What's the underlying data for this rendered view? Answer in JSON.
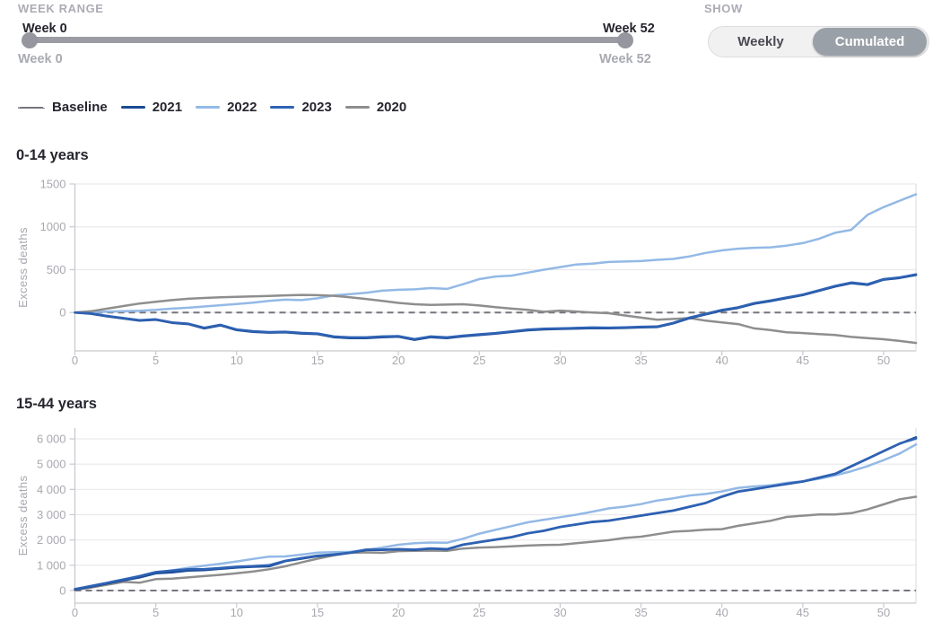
{
  "controls": {
    "week_range_label": "WEEK RANGE",
    "show_label": "SHOW",
    "slider": {
      "from_label": "Week 0",
      "to_label": "Week 52",
      "from_sublabel": "Week 0",
      "to_sublabel": "Week 52"
    },
    "toggle": {
      "options": [
        "Weekly",
        "Cumulated"
      ],
      "selected": "Cumulated"
    }
  },
  "legend": [
    {
      "label": "Baseline",
      "color": "#75757d",
      "dashed": true
    },
    {
      "label": "2021",
      "color": "#1a4a94",
      "dashed": false
    },
    {
      "label": "2022",
      "color": "#93b9e6",
      "dashed": false
    },
    {
      "label": "2023",
      "color": "#2e62b4",
      "dashed": false
    },
    {
      "label": "2020",
      "color": "#8e8e8e",
      "dashed": false
    }
  ],
  "chart_data": [
    {
      "type": "line",
      "title": "0-14 years",
      "ylabel": "Excess deaths",
      "xlabel": "",
      "xlim": [
        0,
        52
      ],
      "ylim": [
        -450,
        1500
      ],
      "grid": true,
      "baseline": 0,
      "xticks": [
        0,
        5,
        10,
        15,
        20,
        25,
        30,
        35,
        40,
        45,
        50
      ],
      "yticks": [
        {
          "v": 0,
          "label": "0"
        },
        {
          "v": 500,
          "label": "500"
        },
        {
          "v": 1000,
          "label": "1000"
        },
        {
          "v": 1500,
          "label": "1500"
        }
      ],
      "x": [
        0,
        1,
        2,
        3,
        4,
        5,
        6,
        7,
        8,
        9,
        10,
        11,
        12,
        13,
        14,
        15,
        16,
        17,
        18,
        19,
        20,
        21,
        22,
        23,
        24,
        25,
        26,
        27,
        28,
        29,
        30,
        31,
        32,
        33,
        34,
        35,
        36,
        37,
        38,
        39,
        40,
        41,
        42,
        43,
        44,
        45,
        46,
        47,
        48,
        49,
        50,
        51,
        52
      ],
      "series": [
        {
          "name": "2022",
          "color": "#93b9e6",
          "values": [
            0,
            5,
            10,
            15,
            20,
            30,
            45,
            55,
            70,
            85,
            100,
            115,
            135,
            150,
            145,
            165,
            200,
            215,
            230,
            255,
            265,
            270,
            285,
            275,
            330,
            390,
            420,
            430,
            465,
            500,
            530,
            560,
            570,
            590,
            595,
            600,
            615,
            625,
            655,
            695,
            725,
            745,
            755,
            760,
            780,
            810,
            860,
            930,
            965,
            1140,
            1230,
            1305,
            1380
          ]
        },
        {
          "name": "2020",
          "color": "#8e8e8e",
          "values": [
            0,
            15,
            45,
            75,
            105,
            125,
            145,
            160,
            170,
            178,
            183,
            188,
            193,
            200,
            205,
            202,
            195,
            178,
            158,
            135,
            112,
            96,
            88,
            92,
            96,
            82,
            62,
            45,
            30,
            8,
            22,
            12,
            0,
            -8,
            -35,
            -60,
            -85,
            -75,
            -65,
            -95,
            -115,
            -135,
            -185,
            -205,
            -230,
            -240,
            -252,
            -262,
            -285,
            -300,
            -312,
            -332,
            -355
          ]
        },
        {
          "name": "2021",
          "color": "#1a4a94",
          "values": [
            0,
            -15,
            -45,
            -70,
            -95,
            -85,
            -120,
            -135,
            -185,
            -150,
            -205,
            -225,
            -235,
            -230,
            -245,
            -252,
            -288,
            -298,
            -298,
            -288,
            -282,
            -318,
            -288,
            -298,
            -278,
            -262,
            -247,
            -227,
            -207,
            -197,
            -192,
            -187,
            -182,
            -184,
            -180,
            -174,
            -170,
            -127,
            -67,
            -22,
            23,
            53,
            103,
            133,
            168,
            203,
            253,
            303,
            343,
            323,
            383,
            403,
            438
          ]
        },
        {
          "name": "2023",
          "color": "#2e62b4",
          "values": [
            0,
            -10,
            -40,
            -65,
            -90,
            -80,
            -115,
            -130,
            -178,
            -143,
            -198,
            -218,
            -228,
            -224,
            -238,
            -245,
            -280,
            -290,
            -290,
            -280,
            -275,
            -310,
            -280,
            -290,
            -270,
            -255,
            -240,
            -220,
            -200,
            -190,
            -185,
            -180,
            -175,
            -177,
            -173,
            -167,
            -163,
            -120,
            -60,
            -15,
            30,
            60,
            110,
            140,
            175,
            210,
            260,
            310,
            350,
            330,
            390,
            410,
            445
          ]
        }
      ]
    },
    {
      "type": "line",
      "title": "15-44 years",
      "ylabel": "Excess deaths",
      "xlabel": "",
      "xlim": [
        0,
        52
      ],
      "ylim": [
        -500,
        6400
      ],
      "grid": true,
      "baseline": 0,
      "xticks": [
        0,
        5,
        10,
        15,
        20,
        25,
        30,
        35,
        40,
        45,
        50
      ],
      "yticks": [
        {
          "v": 0,
          "label": "0"
        },
        {
          "v": 1000,
          "label": "1 000"
        },
        {
          "v": 2000,
          "label": "2 000"
        },
        {
          "v": 3000,
          "label": "3 000"
        },
        {
          "v": 4000,
          "label": "4 000"
        },
        {
          "v": 5000,
          "label": "5 000"
        },
        {
          "v": 6000,
          "label": "6 000"
        }
      ],
      "x": [
        0,
        1,
        2,
        3,
        4,
        5,
        6,
        7,
        8,
        9,
        10,
        11,
        12,
        13,
        14,
        15,
        16,
        17,
        18,
        19,
        20,
        21,
        22,
        23,
        24,
        25,
        26,
        27,
        28,
        29,
        30,
        31,
        32,
        33,
        34,
        35,
        36,
        37,
        38,
        39,
        40,
        41,
        42,
        43,
        44,
        45,
        46,
        47,
        48,
        49,
        50,
        51,
        52
      ],
      "series": [
        {
          "name": "2022",
          "color": "#93b9e6",
          "values": [
            50,
            150,
            250,
            380,
            550,
            700,
            800,
            900,
            980,
            1060,
            1150,
            1250,
            1340,
            1350,
            1420,
            1500,
            1520,
            1530,
            1610,
            1700,
            1810,
            1870,
            1900,
            1890,
            2050,
            2250,
            2400,
            2550,
            2700,
            2800,
            2900,
            3000,
            3120,
            3250,
            3320,
            3420,
            3560,
            3650,
            3760,
            3820,
            3920,
            4060,
            4120,
            4160,
            4260,
            4320,
            4420,
            4560,
            4720,
            4920,
            5160,
            5420,
            5780
          ]
        },
        {
          "name": "2020",
          "color": "#8e8e8e",
          "values": [
            30,
            120,
            230,
            340,
            310,
            450,
            470,
            520,
            570,
            620,
            680,
            750,
            840,
            960,
            1110,
            1260,
            1390,
            1490,
            1510,
            1490,
            1560,
            1570,
            1580,
            1570,
            1660,
            1700,
            1720,
            1750,
            1780,
            1800,
            1810,
            1870,
            1930,
            1990,
            2080,
            2130,
            2230,
            2330,
            2360,
            2410,
            2430,
            2560,
            2660,
            2760,
            2910,
            2960,
            3010,
            3010,
            3060,
            3210,
            3410,
            3610,
            3710
          ]
        },
        {
          "name": "2021",
          "color": "#1a4a94",
          "values": [
            40,
            150,
            280,
            400,
            520,
            680,
            720,
            790,
            810,
            860,
            910,
            940,
            960,
            1160,
            1260,
            1360,
            1410,
            1490,
            1600,
            1610,
            1630,
            1610,
            1660,
            1630,
            1810,
            1910,
            2010,
            2110,
            2260,
            2360,
            2510,
            2610,
            2710,
            2760,
            2860,
            2960,
            3060,
            3160,
            3310,
            3460,
            3710,
            3910,
            4010,
            4110,
            4210,
            4310,
            4460,
            4610,
            4910,
            5210,
            5510,
            5810,
            6060
          ]
        },
        {
          "name": "2023",
          "color": "#2e62b4",
          "values": [
            60,
            180,
            310,
            440,
            570,
            730,
            790,
            840,
            850,
            890,
            940,
            970,
            1000,
            1180,
            1280,
            1380,
            1430,
            1500,
            1620,
            1620,
            1640,
            1620,
            1670,
            1640,
            1820,
            1920,
            2020,
            2120,
            2270,
            2370,
            2520,
            2620,
            2720,
            2770,
            2870,
            2970,
            3070,
            3170,
            3320,
            3470,
            3720,
            3920,
            4020,
            4120,
            4220,
            4320,
            4470,
            4620,
            4920,
            5220,
            5520,
            5820,
            6010
          ]
        }
      ]
    }
  ]
}
